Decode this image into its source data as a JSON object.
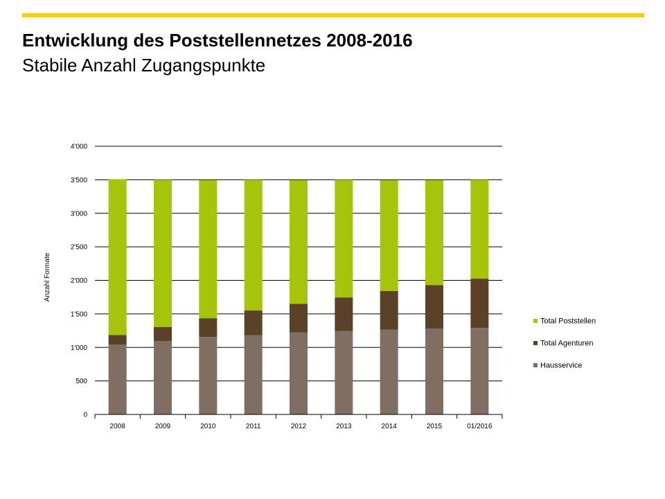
{
  "header": {
    "title": "Entwicklung des Poststellennetzes 2008-2016",
    "subtitle": "Stabile Anzahl Zugangspunkte"
  },
  "colors": {
    "accent": "#FFCC00",
    "poststellen": "#A6C40A",
    "agenturen": "#5A4128",
    "hausservice": "#7F6E61"
  },
  "chart_data": {
    "type": "bar",
    "stacked": true,
    "title": "",
    "xlabel": "",
    "ylabel": "Anzahl Formate",
    "ylim": [
      0,
      4000
    ],
    "yticks": [
      0,
      500,
      1000,
      1500,
      2000,
      2500,
      3000,
      3500,
      4000
    ],
    "ytick_labels": [
      "0",
      "500",
      "1'000",
      "1'500",
      "2'000",
      "2'500",
      "3'000",
      "3'500",
      "4'000"
    ],
    "grid": true,
    "legend_position": "right",
    "categories": [
      "2008",
      "2009",
      "2010",
      "2011",
      "2012",
      "2013",
      "2014",
      "2015",
      "01/2016"
    ],
    "series": [
      {
        "name": "Hausservice",
        "color": "#7F6E61",
        "values": [
          1040,
          1095,
          1155,
          1180,
          1225,
          1245,
          1265,
          1280,
          1290
        ]
      },
      {
        "name": "Total Agenturen",
        "color": "#5A4128",
        "values": [
          145,
          210,
          280,
          370,
          425,
          500,
          575,
          650,
          735
        ]
      },
      {
        "name": "Total Poststellen",
        "color": "#A6C40A",
        "values": [
          2325,
          2195,
          2060,
          1950,
          1845,
          1755,
          1655,
          1565,
          1475
        ]
      }
    ],
    "legend": [
      "Total Poststellen",
      "Total Agenturen",
      "Hausservice"
    ]
  }
}
